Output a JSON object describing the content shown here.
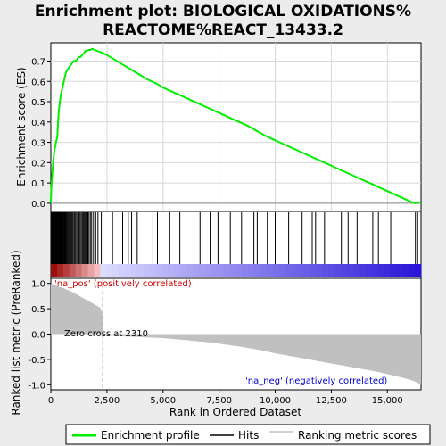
{
  "chart_data": {
    "type": "line",
    "title_line1": "Enrichment plot: BIOLOGICAL OXIDATIONS%",
    "title_line2": "REACTOME%REACT_13433.2",
    "xlabel": "Rank in Ordered Dataset",
    "es_panel": {
      "ylabel": "Enrichment score (ES)",
      "ylim": [
        -0.04,
        0.79
      ],
      "yticks": [
        0.0,
        0.1,
        0.2,
        0.3,
        0.4,
        0.5,
        0.6,
        0.7
      ],
      "ytick_labels": [
        "0.0",
        "0.1",
        "0.2",
        "0.3",
        "0.4",
        "0.5",
        "0.6",
        "0.7"
      ],
      "grid": true,
      "series": [
        {
          "name": "Enrichment profile",
          "color": "#00ee00",
          "x": [
            0,
            20,
            60,
            110,
            160,
            230,
            290,
            320,
            350,
            400,
            440,
            480,
            520,
            580,
            620,
            660,
            700,
            760,
            820,
            880,
            950,
            1020,
            1100,
            1180,
            1250,
            1320,
            1400,
            1480,
            1540,
            1600,
            1680,
            1760,
            1850,
            1950,
            2050,
            2200,
            2310,
            2500,
            2800,
            3100,
            3400,
            3700,
            4000,
            4300,
            4700,
            5000,
            5400,
            5800,
            6200,
            6600,
            6800,
            7200,
            7600,
            8000,
            8400,
            8800,
            9200,
            9600,
            10000,
            10400,
            10800,
            11200,
            11600,
            11800,
            12200,
            12600,
            13000,
            13400,
            13800,
            14200,
            14600,
            15000,
            15400,
            15800,
            16100,
            16250,
            16400,
            16500
          ],
          "y": [
            0.0,
            0.07,
            0.14,
            0.21,
            0.26,
            0.3,
            0.33,
            0.39,
            0.45,
            0.5,
            0.53,
            0.55,
            0.57,
            0.6,
            0.62,
            0.64,
            0.65,
            0.66,
            0.67,
            0.68,
            0.69,
            0.7,
            0.7,
            0.71,
            0.72,
            0.72,
            0.73,
            0.74,
            0.75,
            0.75,
            0.755,
            0.755,
            0.76,
            0.755,
            0.75,
            0.745,
            0.74,
            0.73,
            0.71,
            0.69,
            0.67,
            0.65,
            0.63,
            0.61,
            0.59,
            0.57,
            0.55,
            0.53,
            0.51,
            0.49,
            0.48,
            0.46,
            0.44,
            0.42,
            0.4,
            0.38,
            0.355,
            0.33,
            0.31,
            0.29,
            0.27,
            0.25,
            0.23,
            0.22,
            0.2,
            0.18,
            0.16,
            0.14,
            0.12,
            0.1,
            0.08,
            0.06,
            0.04,
            0.02,
            0.005,
            0.0,
            0.005,
            0.003
          ]
        }
      ]
    },
    "hits_panel": {
      "series_name": "Hits",
      "hit_positions": [
        10,
        25,
        40,
        60,
        75,
        90,
        110,
        130,
        150,
        170,
        190,
        210,
        230,
        250,
        270,
        290,
        300,
        310,
        320,
        330,
        340,
        350,
        360,
        370,
        380,
        395,
        410,
        425,
        440,
        455,
        470,
        490,
        510,
        530,
        550,
        570,
        600,
        630,
        660,
        690,
        720,
        760,
        800,
        840,
        880,
        920,
        960,
        1000,
        1050,
        1100,
        1150,
        1200,
        1250,
        1300,
        1350,
        1400,
        1440,
        1480,
        1520,
        1560,
        1600,
        1650,
        1700,
        1760,
        1820,
        1900,
        2000,
        2100,
        2250,
        2750,
        3200,
        3450,
        3600,
        3850,
        4550,
        4750,
        5300,
        5750,
        6650,
        7100,
        7450,
        8000,
        8500,
        9050,
        9200,
        9650,
        10000,
        10600,
        11200,
        11650,
        11800,
        12200,
        12950,
        13250,
        13650,
        14350,
        14600,
        15150,
        16250,
        16350
      ]
    },
    "metric_panel": {
      "ylabel": "Ranked list metric (PreRanked)",
      "ylim": [
        -1.1,
        1.1
      ],
      "yticks": [
        -1.0,
        -0.5,
        0.0,
        0.5,
        1.0
      ],
      "ytick_labels": [
        "-1.0",
        "-0.5",
        "0.0",
        "0.5",
        "1.0"
      ],
      "series_name": "Ranking metric scores",
      "fill_color": "#c0c0c0",
      "x": [
        0,
        100,
        200,
        400,
        600,
        800,
        1000,
        1200,
        1400,
        1600,
        1800,
        2000,
        2200,
        2300,
        2310,
        2400,
        3000,
        4000,
        5000,
        5500,
        6000,
        6500,
        7000,
        7500,
        8000,
        8500,
        9000,
        9500,
        10000,
        10500,
        11000,
        11500,
        12000,
        12500,
        13000,
        13500,
        14000,
        14500,
        15000,
        15500,
        16000,
        16300,
        16500
      ],
      "y": [
        1.0,
        0.98,
        0.96,
        0.93,
        0.9,
        0.86,
        0.82,
        0.77,
        0.72,
        0.67,
        0.62,
        0.57,
        0.52,
        0.4,
        0.0,
        -0.02,
        -0.04,
        -0.06,
        -0.08,
        -0.1,
        -0.12,
        -0.14,
        -0.16,
        -0.19,
        -0.22,
        -0.25,
        -0.29,
        -0.33,
        -0.38,
        -0.42,
        -0.46,
        -0.5,
        -0.54,
        -0.58,
        -0.62,
        -0.66,
        -0.7,
        -0.74,
        -0.79,
        -0.84,
        -0.9,
        -0.95,
        -1.0
      ],
      "annotations": {
        "pos_label": "'na_pos' (positively correlated)",
        "neg_label": "'na_neg' (negatively correlated)",
        "zero_cross": "Zero cross at 2310",
        "zero_cross_x": 2310
      }
    },
    "xlim": [
      0,
      16500
    ],
    "xticks": [
      0,
      2500,
      5000,
      7500,
      10000,
      12500,
      15000
    ],
    "xtick_labels": [
      "0",
      "2,500",
      "5,000",
      "7,500",
      "10,000",
      "12,500",
      "15,000"
    ],
    "legend": {
      "placement": "bottom",
      "items": [
        {
          "label": "Enrichment profile",
          "color": "#00ee00"
        },
        {
          "label": "Hits",
          "color": "#000000"
        },
        {
          "label": "Ranking metric scores",
          "color": "#c0c0c0"
        }
      ]
    }
  }
}
